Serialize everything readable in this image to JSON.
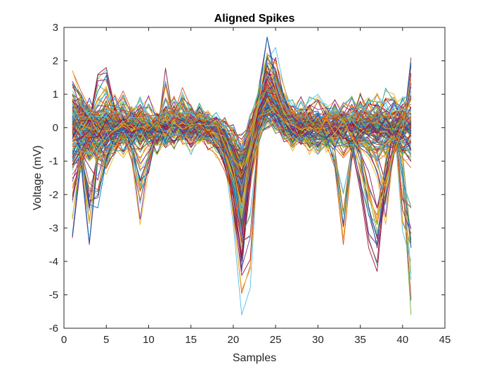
{
  "chart_data": {
    "type": "line",
    "title": "Aligned Spikes",
    "xlabel": "Samples",
    "ylabel": "Voltage (mV)",
    "xlim": [
      0,
      45
    ],
    "ylim": [
      -6,
      3
    ],
    "xticks": [
      0,
      5,
      10,
      15,
      20,
      25,
      30,
      35,
      40,
      45
    ],
    "yticks": [
      -6,
      -5,
      -4,
      -3,
      -2,
      -1,
      0,
      1,
      2,
      3
    ],
    "grid": false,
    "legend": "none",
    "x": [
      1,
      2,
      3,
      4,
      5,
      6,
      7,
      8,
      9,
      10,
      11,
      12,
      13,
      14,
      15,
      16,
      17,
      18,
      19,
      20,
      21,
      22,
      23,
      24,
      25,
      26,
      27,
      28,
      29,
      30,
      31,
      32,
      33,
      34,
      35,
      36,
      37,
      38,
      39,
      40,
      41
    ],
    "colors": [
      "#0072BD",
      "#D95319",
      "#EDB120",
      "#7E2F8E",
      "#77AC30",
      "#4DBEEE",
      "#A2142F"
    ],
    "series": [
      {
        "values": [
          -1.2,
          -0.8,
          -0.4,
          -0.2,
          0.1,
          0.2,
          0.1,
          0.0,
          -0.1,
          0.0,
          0.1,
          0.0,
          0.1,
          0.0,
          0.2,
          0.1,
          0.0,
          -0.1,
          -0.8,
          -2.5,
          -4.3,
          -1.4,
          0.6,
          1.3,
          1.0,
          0.5,
          0.2,
          0.0,
          -0.1,
          0.0,
          0.1,
          0.0,
          0.0,
          0.1,
          0.0,
          -0.1,
          0.0,
          0.1,
          0.0,
          -0.1,
          0.0
        ]
      },
      {
        "values": [
          1.7,
          1.1,
          0.6,
          0.3,
          0.1,
          0.0,
          -0.2,
          -0.4,
          -0.3,
          0.0,
          0.1,
          0.2,
          0.0,
          -0.1,
          0.0,
          0.1,
          0.2,
          -0.2,
          -0.6,
          -1.7,
          -3.5,
          -1.2,
          0.4,
          1.2,
          0.9,
          0.4,
          0.2,
          0.1,
          0.0,
          -0.1,
          -0.5,
          -1.2,
          -3.5,
          -1.0,
          0.2,
          0.1,
          0.0,
          0.2,
          0.0,
          0.1,
          0.0
        ]
      },
      {
        "values": [
          0.1,
          -0.2,
          -0.6,
          -1.1,
          -1.4,
          -0.8,
          -0.3,
          -1.0,
          -2.9,
          -1.3,
          -0.2,
          1.8,
          0.2,
          0.0,
          0.1,
          0.0,
          -0.1,
          -0.2,
          -0.5,
          -1.4,
          -3.6,
          -1.2,
          0.4,
          0.9,
          0.7,
          0.3,
          0.2,
          0.1,
          0.0,
          0.0,
          0.1,
          0.2,
          0.0,
          -0.2,
          -0.6,
          -0.9,
          -1.5,
          -2.9,
          -0.6,
          0.2,
          1.3
        ]
      },
      {
        "values": [
          -3.3,
          -1.1,
          -3.5,
          -1.0,
          -0.3,
          -0.1,
          0.2,
          0.0,
          -0.1,
          0.1,
          0.0,
          -0.1,
          0.0,
          0.1,
          0.0,
          0.2,
          0.1,
          0.0,
          -0.5,
          -1.8,
          -2.8,
          -1.0,
          1.2,
          2.7,
          1.6,
          0.5,
          0.1,
          0.0,
          -0.1,
          0.0,
          0.1,
          0.0,
          0.1,
          -0.2,
          -1.0,
          -2.4,
          -3.6,
          -2.1,
          -0.8,
          -0.2,
          2.1
        ]
      },
      {
        "values": [
          0.6,
          0.3,
          -0.3,
          -0.8,
          -0.4,
          0.0,
          0.2,
          0.1,
          0.0,
          -0.1,
          0.1,
          0.0,
          0.1,
          0.2,
          0.0,
          0.1,
          0.0,
          -0.2,
          -0.7,
          -1.6,
          -2.6,
          -0.9,
          0.6,
          1.5,
          1.1,
          0.6,
          0.3,
          0.1,
          0.0,
          0.1,
          0.0,
          0.1,
          0.0,
          0.1,
          -0.1,
          0.0,
          0.1,
          0.0,
          -0.2,
          -1.6,
          -5.6
        ]
      },
      {
        "values": [
          -2.0,
          -1.3,
          -0.7,
          -0.3,
          0.0,
          0.1,
          0.0,
          0.1,
          0.0,
          0.1,
          0.2,
          0.0,
          0.1,
          0.0,
          -0.1,
          0.0,
          0.1,
          -0.3,
          -1.0,
          -2.9,
          -5.6,
          -4.8,
          -0.5,
          2.0,
          2.4,
          1.2,
          0.5,
          0.2,
          0.0,
          0.1,
          0.0,
          0.2,
          0.1,
          0.0,
          0.1,
          0.0,
          -0.1,
          0.0,
          0.2,
          -3.1,
          -4.0
        ]
      },
      {
        "values": [
          1.0,
          0.8,
          0.2,
          1.6,
          1.8,
          0.6,
          0.0,
          -0.2,
          0.1,
          0.0,
          -0.1,
          0.2,
          0.1,
          0.0,
          0.1,
          0.0,
          -0.1,
          -0.3,
          -1.1,
          -2.3,
          -4.0,
          -1.8,
          0.2,
          1.7,
          1.3,
          0.6,
          0.3,
          0.1,
          -0.1,
          0.0,
          0.1,
          0.0,
          -0.2,
          -0.6,
          -1.9,
          -3.6,
          -4.3,
          -1.6,
          0.1,
          0.4,
          0.2
        ]
      },
      {
        "values": [
          0.3,
          -1.0,
          -2.3,
          -2.4,
          -1.0,
          -0.3,
          0.0,
          -0.6,
          -1.9,
          -1.3,
          -0.2,
          0.1,
          0.0,
          0.2,
          0.0,
          0.1,
          -0.1,
          -0.2,
          -0.7,
          -1.7,
          -3.0,
          -1.1,
          0.7,
          2.2,
          2.0,
          0.9,
          0.4,
          0.2,
          0.0,
          0.1,
          0.0,
          0.1,
          0.1,
          0.0,
          0.1,
          0.0,
          -0.1,
          0.0,
          0.1,
          0.0,
          -0.1
        ]
      },
      {
        "values": [
          0.4,
          0.1,
          -0.2,
          -0.1,
          0.3,
          0.6,
          1.1,
          0.5,
          0.1,
          0.0,
          0.2,
          0.9,
          0.4,
          1.2,
          0.6,
          0.3,
          0.1,
          -0.1,
          -0.4,
          -1.0,
          -2.1,
          -0.8,
          0.5,
          1.2,
          0.8,
          0.4,
          0.1,
          0.0,
          0.1,
          0.3,
          0.2,
          0.0,
          0.1,
          0.3,
          1.0,
          0.5,
          0.2,
          0.0,
          0.1,
          0.2,
          0.1
        ]
      },
      {
        "values": [
          -0.5,
          -0.2,
          0.1,
          0.3,
          0.2,
          0.0,
          -0.3,
          -0.2,
          0.0,
          0.1,
          0.0,
          -0.1,
          0.0,
          0.1,
          0.2,
          0.1,
          0.0,
          -0.2,
          -0.6,
          -1.2,
          -1.9,
          -0.8,
          0.3,
          0.8,
          0.6,
          0.2,
          0.0,
          -0.2,
          -0.4,
          -0.6,
          -0.3,
          0.0,
          0.1,
          0.2,
          0.1,
          0.0,
          0.4,
          1.1,
          1.0,
          0.3,
          -0.1
        ]
      },
      {
        "values": [
          0.8,
          0.6,
          0.3,
          0.2,
          0.4,
          0.3,
          0.1,
          0.2,
          0.0,
          -0.2,
          -0.1,
          0.1,
          0.3,
          0.2,
          0.0,
          0.1,
          0.3,
          0.1,
          -0.3,
          -0.8,
          -1.4,
          -0.5,
          0.5,
          1.0,
          0.7,
          0.3,
          0.1,
          0.2,
          0.3,
          0.1,
          -0.1,
          0.0,
          0.2,
          0.1,
          0.3,
          0.2,
          0.0,
          0.1,
          0.2,
          0.4,
          0.2
        ]
      },
      {
        "values": [
          -0.9,
          -0.6,
          -1.0,
          -0.7,
          -0.3,
          -0.5,
          -0.2,
          0.0,
          -0.3,
          -0.1,
          0.0,
          -0.4,
          -0.2,
          0.0,
          -0.1,
          -0.3,
          -0.2,
          -0.4,
          -0.7,
          -1.3,
          -2.2,
          -1.0,
          0.0,
          0.5,
          0.3,
          0.0,
          -0.3,
          -0.1,
          -0.4,
          -0.2,
          -0.6,
          -0.4,
          -0.2,
          -0.5,
          -0.3,
          -0.6,
          -0.4,
          -0.8,
          -0.5,
          -0.3,
          -0.6
        ]
      },
      {
        "values": [
          0.2,
          0.5,
          0.8,
          0.4,
          0.1,
          0.3,
          0.6,
          0.2,
          0.4,
          0.1,
          0.3,
          0.5,
          0.2,
          0.3,
          0.6,
          0.3,
          0.2,
          0.0,
          -0.2,
          -0.6,
          -1.1,
          -0.2,
          0.9,
          1.4,
          1.1,
          0.7,
          0.5,
          0.3,
          0.6,
          0.4,
          0.2,
          0.5,
          0.3,
          0.6,
          0.4,
          0.2,
          0.5,
          0.3,
          0.7,
          0.4,
          0.3
        ]
      },
      {
        "values": [
          -0.3,
          -0.1,
          0.2,
          -0.2,
          -0.5,
          -0.2,
          0.1,
          -0.1,
          0.2,
          -0.2,
          -0.4,
          -0.1,
          0.1,
          -0.3,
          -0.1,
          0.0,
          -0.2,
          -0.3,
          -0.9,
          -2.0,
          -3.2,
          -1.5,
          0.1,
          0.9,
          0.7,
          0.2,
          -0.1,
          -0.3,
          -0.1,
          0.1,
          -0.2,
          -0.4,
          -0.2,
          0.0,
          -0.2,
          -0.1,
          -0.3,
          -0.1,
          -0.4,
          -0.2,
          -0.1
        ]
      },
      {
        "values": [
          0.0,
          0.2,
          0.4,
          0.1,
          -0.1,
          0.1,
          0.3,
          0.5,
          0.2,
          0.0,
          0.2,
          0.1,
          -0.1,
          0.1,
          0.3,
          0.2,
          0.0,
          -0.1,
          -0.3,
          -0.7,
          -1.2,
          -0.6,
          0.3,
          0.7,
          0.5,
          0.3,
          0.1,
          0.2,
          0.4,
          0.2,
          0.0,
          0.2,
          0.4,
          0.2,
          0.1,
          0.3,
          0.2,
          0.0,
          0.2,
          0.4,
          0.2
        ]
      },
      {
        "values": [
          -1.4,
          -1.0,
          -0.6,
          -0.9,
          -1.2,
          -0.7,
          -0.4,
          -0.6,
          -0.9,
          -0.5,
          -0.3,
          -0.6,
          -0.4,
          -0.2,
          -0.5,
          -0.3,
          -0.6,
          -0.8,
          -1.3,
          -2.1,
          -2.9,
          -1.7,
          -0.4,
          0.2,
          0.0,
          -0.3,
          -0.6,
          -0.4,
          -0.7,
          -0.5,
          -0.3,
          -0.6,
          -0.9,
          -0.6,
          -0.4,
          -0.7,
          -1.0,
          -0.8,
          -0.5,
          -0.9,
          -1.2
        ]
      },
      {
        "values": [
          0.5,
          0.9,
          0.6,
          0.3,
          0.7,
          1.0,
          0.5,
          0.2,
          0.6,
          0.9,
          0.4,
          0.2,
          0.5,
          0.8,
          0.4,
          0.6,
          0.3,
          0.2,
          0.0,
          -0.4,
          -0.9,
          0.1,
          1.0,
          1.5,
          1.2,
          0.8,
          0.6,
          0.9,
          0.5,
          0.3,
          0.6,
          0.8,
          0.5,
          0.3,
          0.7,
          0.9,
          0.6,
          0.4,
          0.7,
          0.9,
          0.6
        ]
      },
      {
        "values": [
          -0.7,
          -0.4,
          -0.1,
          -0.3,
          -0.6,
          -0.3,
          0.0,
          -0.2,
          -0.5,
          -0.2,
          0.0,
          -0.3,
          -0.6,
          -0.2,
          0.0,
          -0.2,
          -0.4,
          -0.6,
          -1.1,
          -1.8,
          -2.4,
          -1.3,
          -0.1,
          0.6,
          0.4,
          0.1,
          -0.2,
          -0.4,
          -0.2,
          -0.5,
          -0.3,
          -0.1,
          -0.4,
          -0.6,
          -0.3,
          -0.1,
          -0.4,
          -0.2,
          -0.5,
          -0.8,
          -0.4
        ]
      },
      {
        "values": [
          0.3,
          0.0,
          -0.2,
          0.1,
          0.4,
          0.2,
          -0.1,
          0.1,
          0.3,
          0.0,
          -0.2,
          0.0,
          0.2,
          0.4,
          0.1,
          -0.1,
          0.1,
          0.0,
          -0.4,
          -1.1,
          -1.8,
          -0.7,
          0.4,
          1.1,
          0.9,
          0.5,
          0.2,
          0.0,
          0.2,
          0.4,
          0.2,
          -0.1,
          0.1,
          0.3,
          0.0,
          0.2,
          0.4,
          0.1,
          -0.1,
          0.2,
          0.0
        ]
      },
      {
        "values": [
          1.1,
          0.7,
          0.4,
          0.8,
          1.0,
          0.6,
          0.3,
          0.5,
          0.8,
          0.4,
          0.2,
          0.6,
          0.9,
          0.5,
          0.3,
          0.6,
          0.4,
          0.3,
          0.2,
          -0.1,
          -0.6,
          0.3,
          1.1,
          1.7,
          1.4,
          1.0,
          0.7,
          0.5,
          0.8,
          1.0,
          0.6,
          0.4,
          0.7,
          0.9,
          0.5,
          0.7,
          1.0,
          0.6,
          0.4,
          0.8,
          1.1
        ]
      },
      {
        "values": [
          -0.2,
          0.1,
          0.3,
          0.0,
          -0.3,
          -0.1,
          0.2,
          0.0,
          -0.2,
          0.1,
          0.3,
          0.1,
          -0.2,
          0.0,
          0.2,
          0.0,
          -0.1,
          -0.2,
          -0.6,
          -1.4,
          -2.3,
          -1.0,
          0.3,
          1.0,
          0.8,
          0.4,
          0.1,
          -0.1,
          0.1,
          0.3,
          0.0,
          -0.2,
          0.0,
          0.2,
          -0.1,
          0.1,
          0.3,
          0.0,
          -0.2,
          0.1,
          0.3
        ]
      },
      {
        "values": [
          0.0,
          -0.3,
          -0.5,
          -0.2,
          0.1,
          -0.1,
          -0.4,
          -0.2,
          0.0,
          -0.3,
          -0.5,
          -0.2,
          0.1,
          -0.1,
          -0.3,
          -0.1,
          0.1,
          -0.1,
          -0.5,
          -1.0,
          -1.5,
          -0.6,
          0.2,
          0.7,
          0.5,
          0.1,
          -0.2,
          -0.4,
          -0.2,
          0.0,
          -0.3,
          -0.5,
          -0.2,
          0.0,
          -0.3,
          -0.1,
          0.1,
          -0.2,
          -0.4,
          -0.1,
          0.1
        ]
      },
      {
        "values": [
          0.7,
          0.4,
          0.1,
          0.4,
          0.7,
          0.3,
          0.0,
          0.3,
          0.5,
          0.2,
          0.0,
          0.3,
          0.6,
          0.3,
          0.1,
          0.4,
          0.2,
          0.1,
          -0.2,
          -0.9,
          -1.6,
          -0.4,
          0.8,
          1.4,
          1.0,
          0.6,
          0.3,
          0.5,
          0.2,
          0.0,
          0.3,
          0.6,
          0.3,
          0.1,
          0.4,
          0.2,
          0.5,
          0.3,
          0.0,
          0.3,
          0.5
        ]
      },
      {
        "values": [
          -0.4,
          -0.7,
          -1.0,
          -0.6,
          -0.3,
          -0.6,
          -0.9,
          -0.5,
          -0.2,
          -0.5,
          -0.8,
          -0.4,
          -0.1,
          -0.4,
          -0.7,
          -0.4,
          -0.2,
          -0.5,
          -1.0,
          -1.9,
          -2.7,
          -1.4,
          -0.2,
          0.4,
          0.2,
          -0.2,
          -0.5,
          -0.3,
          -0.6,
          -0.8,
          -0.5,
          -0.2,
          -0.5,
          -0.7,
          -0.4,
          -0.6,
          -0.9,
          -0.5,
          -0.3,
          -0.6,
          -0.8
        ]
      }
    ]
  }
}
